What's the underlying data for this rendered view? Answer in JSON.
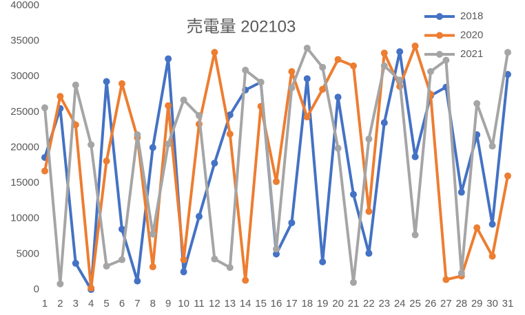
{
  "chart_data": {
    "type": "line",
    "title": "売電量 202103",
    "categories": [
      "1",
      "2",
      "3",
      "4",
      "5",
      "6",
      "7",
      "8",
      "9",
      "10",
      "11",
      "12",
      "13",
      "14",
      "15",
      "16",
      "17",
      "18",
      "19",
      "20",
      "21",
      "22",
      "23",
      "24",
      "25",
      "26",
      "27",
      "28",
      "29",
      "30",
      "31"
    ],
    "series": [
      {
        "name": "2018",
        "color": "#4472c4",
        "values": [
          18600,
          25500,
          3700,
          0,
          29300,
          8500,
          1200,
          20000,
          32500,
          2500,
          10300,
          17800,
          24600,
          28100,
          29200,
          5000,
          9400,
          29700,
          3900,
          27100,
          13400,
          5100,
          23500,
          33500,
          18700,
          27300,
          28500,
          13700,
          21800,
          9200,
          30300
        ]
      },
      {
        "name": "2020",
        "color": "#ed7d31",
        "values": [
          16700,
          27200,
          23200,
          200,
          18100,
          29000,
          21400,
          3200,
          25900,
          4200,
          23300,
          33400,
          21900,
          1300,
          25800,
          15200,
          30700,
          24300,
          28200,
          32400,
          31500,
          11000,
          33300,
          28600,
          34300,
          27500,
          1400,
          1900,
          8700,
          4700,
          16000
        ]
      },
      {
        "name": "2021",
        "color": "#a5a5a5",
        "values": [
          25600,
          800,
          28800,
          20400,
          3300,
          4200,
          21800,
          7800,
          20500,
          26700,
          24500,
          4300,
          3100,
          30900,
          29200,
          5700,
          28400,
          34000,
          31300,
          19900,
          1000,
          21200,
          31500,
          29500,
          7700,
          30700,
          32300,
          2300,
          26200,
          20200,
          33400
        ]
      }
    ],
    "ylim": [
      0,
      40000
    ],
    "yticks": [
      0,
      5000,
      10000,
      15000,
      20000,
      25000,
      30000,
      35000,
      40000
    ],
    "grid": false,
    "legend": "top-right"
  }
}
